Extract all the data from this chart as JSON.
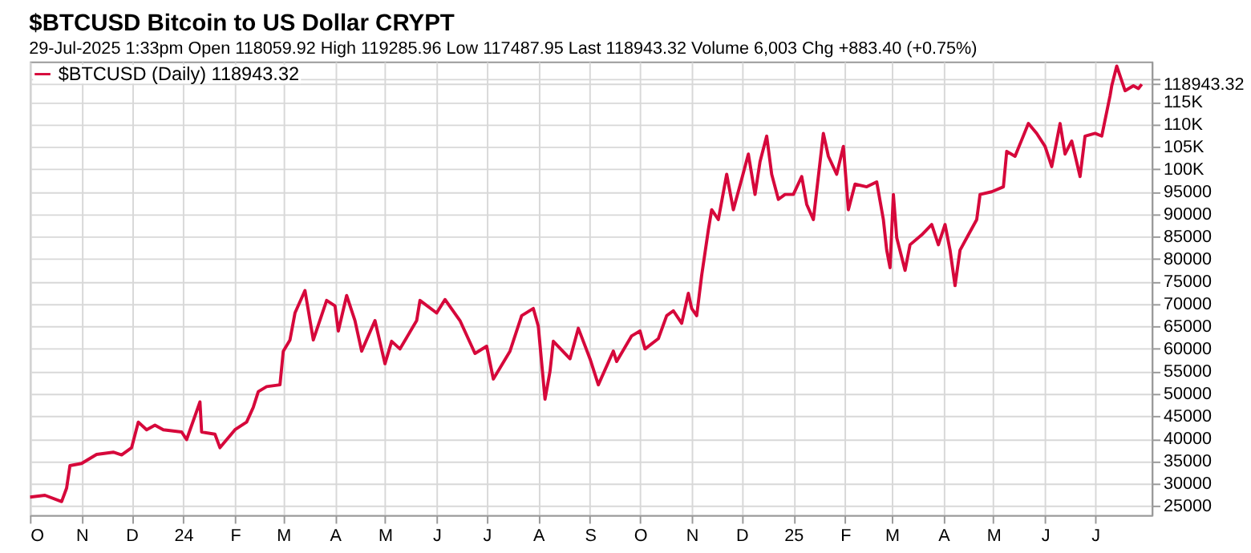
{
  "chart_data": {
    "type": "line",
    "title": "$BTCUSD Bitcoin to US Dollar CRYPT",
    "subtitle": "29-Jul-2025 1:33pm   Open 118059.92  High 119285.96  Low 117487.95  Last 118943.32  Volume 6,003  Chg +883.40 (+0.75%)",
    "x": [
      "2023-10-01",
      "2023-10-10",
      "2023-10-20",
      "2023-10-23",
      "2023-10-25",
      "2023-11-01",
      "2023-11-10",
      "2023-11-20",
      "2023-11-25",
      "2023-12-01",
      "2023-12-05",
      "2023-12-10",
      "2023-12-15",
      "2023-12-20",
      "2023-12-31",
      "2024-01-03",
      "2024-01-11",
      "2024-01-12",
      "2024-01-20",
      "2024-01-23",
      "2024-02-01",
      "2024-02-08",
      "2024-02-12",
      "2024-02-15",
      "2024-02-20",
      "2024-02-28",
      "2024-03-01",
      "2024-03-05",
      "2024-03-08",
      "2024-03-14",
      "2024-03-19",
      "2024-03-27",
      "2024-04-01",
      "2024-04-03",
      "2024-04-08",
      "2024-04-13",
      "2024-04-17",
      "2024-04-25",
      "2024-05-01",
      "2024-05-05",
      "2024-05-10",
      "2024-05-20",
      "2024-05-22",
      "2024-06-01",
      "2024-06-06",
      "2024-06-15",
      "2024-06-24",
      "2024-07-01",
      "2024-07-05",
      "2024-07-15",
      "2024-07-22",
      "2024-07-29",
      "2024-08-01",
      "2024-08-05",
      "2024-08-08",
      "2024-08-10",
      "2024-08-20",
      "2024-08-25",
      "2024-09-01",
      "2024-09-06",
      "2024-09-15",
      "2024-09-17",
      "2024-09-26",
      "2024-10-01",
      "2024-10-04",
      "2024-10-12",
      "2024-10-17",
      "2024-10-21",
      "2024-10-26",
      "2024-10-30",
      "2024-11-01",
      "2024-11-04",
      "2024-11-07",
      "2024-11-11",
      "2024-11-13",
      "2024-11-17",
      "2024-11-22",
      "2024-11-26",
      "2024-12-01",
      "2024-12-05",
      "2024-12-09",
      "2024-12-12",
      "2024-12-16",
      "2024-12-19",
      "2024-12-23",
      "2024-12-27",
      "2025-01-01",
      "2025-01-06",
      "2025-01-09",
      "2025-01-13",
      "2025-01-19",
      "2025-01-22",
      "2025-01-27",
      "2025-01-31",
      "2025-02-03",
      "2025-02-07",
      "2025-02-14",
      "2025-02-20",
      "2025-02-24",
      "2025-02-26",
      "2025-02-28",
      "2025-03-02",
      "2025-03-04",
      "2025-03-09",
      "2025-03-12",
      "2025-03-19",
      "2025-03-25",
      "2025-03-29",
      "2025-04-02",
      "2025-04-05",
      "2025-04-08",
      "2025-04-11",
      "2025-04-16",
      "2025-04-21",
      "2025-04-23",
      "2025-04-30",
      "2025-05-07",
      "2025-05-09",
      "2025-05-14",
      "2025-05-22",
      "2025-05-27",
      "2025-06-01",
      "2025-06-05",
      "2025-06-10",
      "2025-06-13",
      "2025-06-17",
      "2025-06-22",
      "2025-06-25",
      "2025-07-01",
      "2025-07-05",
      "2025-07-10",
      "2025-07-11",
      "2025-07-14",
      "2025-07-19",
      "2025-07-24",
      "2025-07-27",
      "2025-07-29"
    ],
    "series": [
      {
        "name": "$BTCUSD (Daily) 118943.32",
        "color": "#d6083b",
        "values": [
          27000,
          27400,
          26000,
          29000,
          34000,
          34500,
          36500,
          37000,
          36400,
          38000,
          43700,
          42000,
          43000,
          42000,
          41500,
          39800,
          48200,
          41500,
          41000,
          38000,
          42000,
          43700,
          47000,
          50500,
          51600,
          52000,
          59500,
          62000,
          68000,
          73000,
          62000,
          70800,
          69600,
          64000,
          71900,
          66300,
          59500,
          66300,
          56700,
          61700,
          60000,
          66300,
          70800,
          68000,
          71000,
          66300,
          59000,
          60600,
          53300,
          59500,
          67400,
          69000,
          65000,
          48800,
          55000,
          61700,
          57800,
          64600,
          57800,
          52000,
          59500,
          57200,
          62900,
          64000,
          60000,
          62300,
          67400,
          68500,
          65700,
          72400,
          69000,
          67400,
          76400,
          86500,
          91000,
          88800,
          98900,
          91000,
          97800,
          103400,
          94400,
          101700,
          107400,
          98900,
          93300,
          94400,
          94400,
          98400,
          92200,
          88800,
          108000,
          102900,
          98900,
          105100,
          91000,
          96700,
          96100,
          97200,
          88800,
          82000,
          78100,
          94400,
          84800,
          77500,
          83200,
          85400,
          87700,
          83200,
          87700,
          82000,
          74100,
          82000,
          85400,
          88800,
          94400,
          95000,
          96100,
          104000,
          102900,
          110200,
          108000,
          105100,
          100600,
          110200,
          103400,
          106300,
          98400,
          107400,
          108000,
          107400,
          116400,
          118600,
          123000,
          117500,
          118600,
          118000,
          118943.32
        ]
      }
    ],
    "xlim": [
      "2023-10-01",
      "2025-08-04"
    ],
    "xticks": [
      {
        "value": "2023-10-01",
        "label": "O"
      },
      {
        "value": "2023-11-01",
        "label": "N"
      },
      {
        "value": "2023-12-01",
        "label": "D"
      },
      {
        "value": "2024-01-01",
        "label": "24"
      },
      {
        "value": "2024-02-01",
        "label": "F"
      },
      {
        "value": "2024-03-01",
        "label": "M"
      },
      {
        "value": "2024-04-01",
        "label": "A"
      },
      {
        "value": "2024-05-01",
        "label": "M"
      },
      {
        "value": "2024-06-01",
        "label": "J"
      },
      {
        "value": "2024-07-01",
        "label": "J"
      },
      {
        "value": "2024-08-01",
        "label": "A"
      },
      {
        "value": "2024-09-01",
        "label": "S"
      },
      {
        "value": "2024-10-01",
        "label": "O"
      },
      {
        "value": "2024-11-01",
        "label": "N"
      },
      {
        "value": "2024-12-01",
        "label": "D"
      },
      {
        "value": "2025-01-01",
        "label": "25"
      },
      {
        "value": "2025-02-01",
        "label": "F"
      },
      {
        "value": "2025-03-01",
        "label": "M"
      },
      {
        "value": "2025-04-01",
        "label": "A"
      },
      {
        "value": "2025-05-01",
        "label": "M"
      },
      {
        "value": "2025-06-01",
        "label": "J"
      },
      {
        "value": "2025-07-01",
        "label": "J"
      }
    ],
    "ylim": [
      23000,
      124000
    ],
    "yticks": [
      25000,
      30000,
      35000,
      40000,
      45000,
      50000,
      55000,
      60000,
      65000,
      70000,
      75000,
      80000,
      85000,
      90000,
      95000,
      {
        "value": 100000,
        "label": "100K"
      },
      {
        "value": 105000,
        "label": "105K"
      },
      {
        "value": 110000,
        "label": "110K"
      },
      {
        "value": 115000,
        "label": "115K"
      },
      {
        "value": 120000,
        "label": null
      },
      {
        "value": 118943.32,
        "label": "118943.32"
      }
    ],
    "grid": true,
    "legend": "top left",
    "marker": "none",
    "line_style": "solid"
  }
}
